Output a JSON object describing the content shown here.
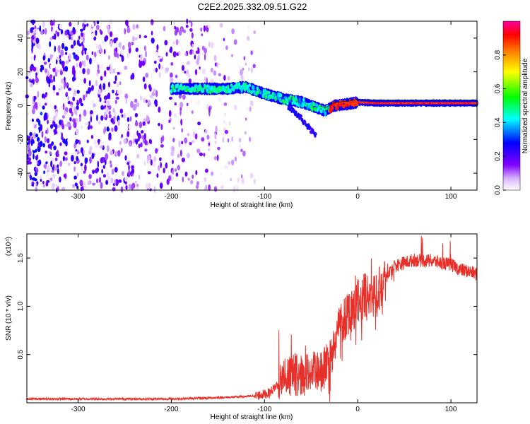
{
  "title": "C2E2.2025.332.09.51.G22",
  "chart_data": [
    {
      "type": "heatmap",
      "xlabel": "Height of straight line (km)",
      "ylabel": "Frequency (Hz)",
      "xlim": [
        -355,
        128
      ],
      "ylim": [
        -50,
        50
      ],
      "xticks": [
        -300,
        -200,
        -100,
        0,
        100
      ],
      "xtick_labels": [
        "-300",
        "-200",
        "-100",
        "0",
        "100"
      ],
      "yticks": [
        -40,
        -20,
        0,
        20,
        40
      ],
      "ytick_labels": [
        "-40",
        "-20",
        "0",
        "20",
        "40"
      ],
      "colorbar": {
        "label": "Normalized spectral amplitude",
        "range": [
          0,
          1
        ],
        "ticks": [
          0.0,
          0.2,
          0.4,
          0.6,
          0.8
        ],
        "tick_labels": [
          "0.0",
          "0.2",
          "0.4",
          "0.6",
          "0.8"
        ],
        "colors": [
          "#ffffff",
          "#8000ff",
          "#0000ff",
          "#00ffff",
          "#00ff00",
          "#ffff00",
          "#ff8000",
          "#ff0000",
          "#ff00ff"
        ]
      },
      "noise_region": {
        "x": [
          -355,
          -110
        ],
        "freq": [
          -50,
          50
        ],
        "amplitude": "random 0-0.3"
      },
      "signal_track": [
        {
          "x": -200,
          "freq": 10
        },
        {
          "x": -170,
          "freq": 10
        },
        {
          "x": -140,
          "freq": 10
        },
        {
          "x": -120,
          "freq": 11
        },
        {
          "x": -100,
          "freq": 7
        },
        {
          "x": -80,
          "freq": 4
        },
        {
          "x": -60,
          "freq": 2
        },
        {
          "x": -45,
          "freq": -1
        },
        {
          "x": -35,
          "freq": -3
        },
        {
          "x": -25,
          "freq": 0
        },
        {
          "x": -10,
          "freq": 1
        },
        {
          "x": 0,
          "freq": 2
        },
        {
          "x": 20,
          "freq": 1.5
        },
        {
          "x": 60,
          "freq": 1.5
        },
        {
          "x": 100,
          "freq": 1.5
        },
        {
          "x": 128,
          "freq": 1.5
        }
      ],
      "secondary_branch": [
        {
          "x": -75,
          "freq": 0
        },
        {
          "x": -60,
          "freq": -8
        },
        {
          "x": -45,
          "freq": -18
        }
      ]
    },
    {
      "type": "line",
      "xlabel": "Height of straight line (km)",
      "ylabel": "SNR (10 * v/v)",
      "y_scale_label": "(x10⁴)",
      "xlim": [
        -355,
        128
      ],
      "ylim": [
        0,
        1.75
      ],
      "xticks": [
        -300,
        -200,
        -100,
        0,
        100
      ],
      "xtick_labels": [
        "-300",
        "-200",
        "-100",
        "0",
        "100"
      ],
      "yticks": [
        0.5,
        1.0,
        1.5
      ],
      "ytick_labels": [
        "0.5",
        "1.0",
        "1.5"
      ],
      "color": "#e8302a",
      "series": [
        {
          "name": "SNR",
          "x": [
            -355,
            -300,
            -250,
            -200,
            -160,
            -130,
            -110,
            -95,
            -80,
            -70,
            -60,
            -50,
            -40,
            -30,
            -20,
            -10,
            0,
            10,
            20,
            30,
            40,
            60,
            80,
            100,
            110,
            120,
            128
          ],
          "y": [
            0.04,
            0.04,
            0.04,
            0.04,
            0.05,
            0.06,
            0.07,
            0.1,
            0.25,
            0.3,
            0.28,
            0.32,
            0.3,
            0.45,
            0.8,
            0.95,
            1.05,
            1.1,
            1.15,
            1.3,
            1.42,
            1.48,
            1.47,
            1.43,
            1.38,
            1.36,
            1.33
          ]
        }
      ]
    }
  ]
}
